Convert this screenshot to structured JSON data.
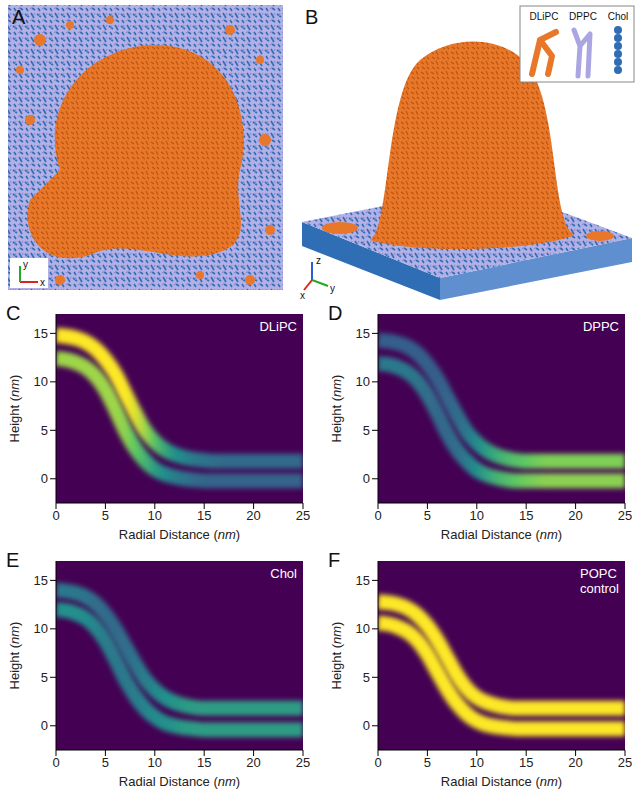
{
  "images": [
    {
      "letter": "A",
      "axes": [
        "x",
        "y"
      ]
    },
    {
      "letter": "B",
      "axes": [
        "x",
        "y",
        "z"
      ],
      "legend": [
        {
          "name": "DLiPC",
          "color": "#e8772a"
        },
        {
          "name": "DPPC",
          "color": "#aaa6e2"
        },
        {
          "name": "Chol",
          "color": "#2f6db5"
        }
      ]
    }
  ],
  "chart_data": [
    {
      "type": "heatmap",
      "letter": "C",
      "title": "DLiPC",
      "x_label": "Radial Distance (nm)",
      "y_label": "Height (nm)",
      "xlim": [
        0,
        25
      ],
      "ylim": [
        -2.5,
        17
      ],
      "xticks": [
        0,
        5,
        10,
        15,
        20,
        25
      ],
      "yticks": [
        0,
        5,
        10,
        15
      ],
      "x": [
        0,
        1,
        2,
        3,
        4,
        5,
        6,
        7,
        8,
        9,
        10,
        11,
        12,
        13,
        14,
        15,
        16,
        17,
        18,
        19,
        20,
        21,
        22,
        23,
        24,
        25
      ],
      "series": [
        {
          "values": [
            14.8,
            14.7,
            14.5,
            14.1,
            13.4,
            12.3,
            10.8,
            8.8,
            6.8,
            5.0,
            3.8,
            3.0,
            2.5,
            2.2,
            2.0,
            1.9,
            1.8,
            1.8,
            1.8,
            1.8,
            1.8,
            1.8,
            1.8,
            1.8,
            1.8,
            1.8
          ],
          "density": [
            1,
            1,
            1,
            1,
            1,
            1,
            1,
            1,
            0.95,
            0.85,
            0.72,
            0.6,
            0.5,
            0.45,
            0.4,
            0.38,
            0.36,
            0.35,
            0.35,
            0.35,
            0.35,
            0.35,
            0.35,
            0.35,
            0.35,
            0.35
          ]
        },
        {
          "values": [
            12.4,
            12.3,
            12.0,
            11.5,
            10.6,
            9.2,
            7.2,
            5.0,
            3.2,
            1.9,
            1.0,
            0.5,
            0.2,
            0.0,
            -0.1,
            -0.2,
            -0.2,
            -0.2,
            -0.2,
            -0.2,
            -0.2,
            -0.2,
            -0.2,
            -0.2,
            -0.2,
            -0.2
          ],
          "density": [
            0.85,
            0.85,
            0.85,
            0.85,
            0.85,
            0.85,
            0.85,
            0.82,
            0.75,
            0.65,
            0.55,
            0.48,
            0.42,
            0.38,
            0.35,
            0.33,
            0.32,
            0.32,
            0.32,
            0.32,
            0.32,
            0.32,
            0.32,
            0.32,
            0.32,
            0.32
          ]
        }
      ]
    },
    {
      "type": "heatmap",
      "letter": "D",
      "title": "DPPC",
      "x_label": "Radial Distance (nm)",
      "y_label": "Height (nm)",
      "xlim": [
        0,
        25
      ],
      "ylim": [
        -2.5,
        17
      ],
      "xticks": [
        0,
        5,
        10,
        15,
        20,
        25
      ],
      "yticks": [
        0,
        5,
        10,
        15
      ],
      "x": [
        0,
        1,
        2,
        3,
        4,
        5,
        6,
        7,
        8,
        9,
        10,
        11,
        12,
        13,
        14,
        15,
        16,
        17,
        18,
        19,
        20,
        21,
        22,
        23,
        24,
        25
      ],
      "series": [
        {
          "values": [
            14.3,
            14.2,
            14.0,
            13.6,
            12.9,
            11.8,
            10.3,
            8.4,
            6.5,
            4.8,
            3.7,
            2.9,
            2.4,
            2.1,
            1.9,
            1.8,
            1.8,
            1.8,
            1.8,
            1.8,
            1.8,
            1.8,
            1.8,
            1.8,
            1.8,
            1.8
          ],
          "density": [
            0.3,
            0.3,
            0.3,
            0.3,
            0.3,
            0.3,
            0.3,
            0.32,
            0.35,
            0.4,
            0.48,
            0.55,
            0.62,
            0.68,
            0.72,
            0.75,
            0.78,
            0.8,
            0.8,
            0.8,
            0.8,
            0.8,
            0.8,
            0.8,
            0.8,
            0.8
          ]
        },
        {
          "values": [
            11.9,
            11.8,
            11.5,
            11.0,
            10.1,
            8.7,
            6.8,
            4.7,
            3.0,
            1.8,
            0.9,
            0.4,
            0.1,
            -0.1,
            -0.2,
            -0.2,
            -0.2,
            -0.2,
            -0.2,
            -0.2,
            -0.2,
            -0.2,
            -0.2,
            -0.2,
            -0.2,
            -0.2
          ],
          "density": [
            0.4,
            0.4,
            0.4,
            0.4,
            0.38,
            0.36,
            0.34,
            0.34,
            0.36,
            0.42,
            0.5,
            0.58,
            0.65,
            0.7,
            0.75,
            0.78,
            0.8,
            0.82,
            0.82,
            0.82,
            0.82,
            0.82,
            0.82,
            0.82,
            0.82,
            0.82
          ]
        }
      ]
    },
    {
      "type": "heatmap",
      "letter": "E",
      "title": "Chol",
      "x_label": "Radial Distance (nm)",
      "y_label": "Height (nm)",
      "xlim": [
        0,
        25
      ],
      "ylim": [
        -2.5,
        17
      ],
      "xticks": [
        0,
        5,
        10,
        15,
        20,
        25
      ],
      "yticks": [
        0,
        5,
        10,
        15
      ],
      "x": [
        0,
        1,
        2,
        3,
        4,
        5,
        6,
        7,
        8,
        9,
        10,
        11,
        12,
        13,
        14,
        15,
        16,
        17,
        18,
        19,
        20,
        21,
        22,
        23,
        24,
        25
      ],
      "series": [
        {
          "values": [
            14.0,
            13.9,
            13.7,
            13.3,
            12.6,
            11.5,
            10.0,
            8.2,
            6.4,
            4.8,
            3.7,
            2.9,
            2.4,
            2.1,
            1.9,
            1.8,
            1.8,
            1.8,
            1.8,
            1.8,
            1.8,
            1.8,
            1.8,
            1.8,
            1.8,
            1.8
          ],
          "density": [
            0.4,
            0.4,
            0.4,
            0.38,
            0.36,
            0.35,
            0.35,
            0.36,
            0.38,
            0.42,
            0.46,
            0.5,
            0.52,
            0.54,
            0.55,
            0.55,
            0.55,
            0.55,
            0.55,
            0.55,
            0.55,
            0.55,
            0.55,
            0.55,
            0.55,
            0.55
          ]
        },
        {
          "values": [
            12.0,
            11.9,
            11.6,
            11.1,
            10.2,
            8.8,
            6.9,
            4.8,
            3.1,
            1.8,
            0.9,
            0.3,
            0.0,
            -0.2,
            -0.3,
            -0.4,
            -0.4,
            -0.4,
            -0.4,
            -0.4,
            -0.4,
            -0.4,
            -0.4,
            -0.4,
            -0.4,
            -0.4
          ],
          "density": [
            0.5,
            0.5,
            0.5,
            0.48,
            0.45,
            0.42,
            0.4,
            0.4,
            0.42,
            0.45,
            0.48,
            0.5,
            0.52,
            0.54,
            0.55,
            0.55,
            0.55,
            0.55,
            0.55,
            0.55,
            0.55,
            0.55,
            0.55,
            0.55,
            0.55,
            0.55
          ]
        }
      ]
    },
    {
      "type": "heatmap",
      "letter": "F",
      "title": "POPC control",
      "x_label": "Radial Distance (nm)",
      "y_label": "Height (nm)",
      "xlim": [
        0,
        25
      ],
      "ylim": [
        -2.5,
        17
      ],
      "xticks": [
        0,
        5,
        10,
        15,
        20,
        25
      ],
      "yticks": [
        0,
        5,
        10,
        15
      ],
      "x": [
        0,
        1,
        2,
        3,
        4,
        5,
        6,
        7,
        8,
        9,
        10,
        11,
        12,
        13,
        14,
        15,
        16,
        17,
        18,
        19,
        20,
        21,
        22,
        23,
        24,
        25
      ],
      "series": [
        {
          "values": [
            12.8,
            12.7,
            12.5,
            12.1,
            11.4,
            10.3,
            8.8,
            7.0,
            5.2,
            3.8,
            2.9,
            2.4,
            2.1,
            1.9,
            1.8,
            1.8,
            1.8,
            1.8,
            1.8,
            1.8,
            1.8,
            1.8,
            1.8,
            1.8,
            1.8,
            1.8
          ],
          "density": [
            1,
            1,
            1,
            1,
            1,
            1,
            1,
            1,
            1,
            1,
            1,
            1,
            1,
            1,
            1,
            1,
            1,
            1,
            1,
            1,
            1,
            1,
            1,
            1,
            1,
            1
          ]
        },
        {
          "values": [
            10.6,
            10.5,
            10.2,
            9.7,
            8.8,
            7.4,
            5.6,
            3.8,
            2.3,
            1.2,
            0.5,
            0.1,
            -0.1,
            -0.2,
            -0.3,
            -0.3,
            -0.3,
            -0.3,
            -0.3,
            -0.3,
            -0.3,
            -0.3,
            -0.3,
            -0.3,
            -0.3,
            -0.3
          ],
          "density": [
            1,
            1,
            1,
            1,
            1,
            1,
            1,
            1,
            1,
            1,
            1,
            1,
            1,
            1,
            1,
            1,
            1,
            1,
            1,
            1,
            1,
            1,
            1,
            1,
            1,
            1
          ]
        }
      ]
    }
  ]
}
